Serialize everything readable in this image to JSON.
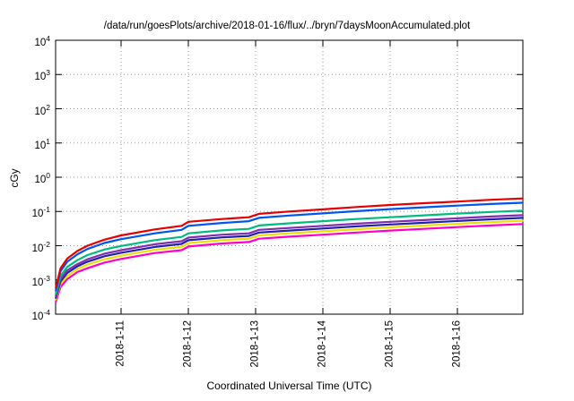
{
  "title": "/data/run/goesPlots/archive/2018-01-16/flux/../bryn/7daysMoonAccumulated.plot",
  "chart_data": {
    "type": "line",
    "title": "/data/run/goesPlots/archive/2018-01-16/flux/../bryn/7daysMoonAccumulated.plot",
    "xlabel": "Coordinated Universal Time (UTC)",
    "ylabel": "cGy",
    "y_scale": "log",
    "ylim": [
      0.0001,
      10000
    ],
    "y_tick_exponents": [
      4,
      3,
      2,
      1,
      0,
      -1,
      -2,
      -3,
      -4
    ],
    "x_tick_labels": [
      "2018-1-11",
      "2018-1-12",
      "2018-1-13",
      "2018-1-14",
      "2018-1-15",
      "2018-1-16"
    ],
    "x_tick_positions_days": [
      1,
      2,
      3,
      4,
      5,
      6
    ],
    "x_range_days": [
      0,
      6.97
    ],
    "grid": true,
    "legend": "none",
    "grid_color": "#999999",
    "series": [
      {
        "name": "accumulated-dose-red",
        "color": "#e60000",
        "points": [
          [
            0.03,
            0.0006
          ],
          [
            0.1,
            0.0022
          ],
          [
            0.2,
            0.0042
          ],
          [
            0.35,
            0.007
          ],
          [
            0.5,
            0.01
          ],
          [
            0.75,
            0.015
          ],
          [
            1.0,
            0.02
          ],
          [
            1.5,
            0.03
          ],
          [
            1.9,
            0.038
          ],
          [
            2.0,
            0.05
          ],
          [
            2.5,
            0.06
          ],
          [
            2.9,
            0.068
          ],
          [
            3.05,
            0.085
          ],
          [
            3.5,
            0.1
          ],
          [
            4.0,
            0.115
          ],
          [
            4.5,
            0.135
          ],
          [
            5.0,
            0.155
          ],
          [
            5.5,
            0.175
          ],
          [
            6.0,
            0.195
          ],
          [
            6.5,
            0.22
          ],
          [
            6.97,
            0.24
          ]
        ]
      },
      {
        "name": "accumulated-dose-blue",
        "color": "#0055ee",
        "points": [
          [
            0.03,
            0.0005
          ],
          [
            0.1,
            0.0018
          ],
          [
            0.2,
            0.0034
          ],
          [
            0.35,
            0.0056
          ],
          [
            0.5,
            0.008
          ],
          [
            0.75,
            0.012
          ],
          [
            1.0,
            0.0155
          ],
          [
            1.5,
            0.023
          ],
          [
            1.9,
            0.029
          ],
          [
            2.0,
            0.038
          ],
          [
            2.5,
            0.046
          ],
          [
            2.9,
            0.052
          ],
          [
            3.05,
            0.065
          ],
          [
            3.5,
            0.076
          ],
          [
            4.0,
            0.088
          ],
          [
            4.5,
            0.102
          ],
          [
            5.0,
            0.117
          ],
          [
            5.5,
            0.132
          ],
          [
            6.0,
            0.148
          ],
          [
            6.5,
            0.165
          ],
          [
            6.97,
            0.18
          ]
        ]
      },
      {
        "name": "accumulated-dose-green",
        "color": "#00bb7f",
        "points": [
          [
            0.03,
            0.0004
          ],
          [
            0.1,
            0.0013
          ],
          [
            0.2,
            0.0024
          ],
          [
            0.35,
            0.0038
          ],
          [
            0.5,
            0.0053
          ],
          [
            0.75,
            0.0077
          ],
          [
            1.0,
            0.0098
          ],
          [
            1.5,
            0.0145
          ],
          [
            1.9,
            0.018
          ],
          [
            2.0,
            0.023
          ],
          [
            2.5,
            0.028
          ],
          [
            2.9,
            0.031
          ],
          [
            3.05,
            0.039
          ],
          [
            3.5,
            0.045
          ],
          [
            4.0,
            0.052
          ],
          [
            4.5,
            0.06
          ],
          [
            5.0,
            0.068
          ],
          [
            5.5,
            0.077
          ],
          [
            6.0,
            0.087
          ],
          [
            6.5,
            0.097
          ],
          [
            6.97,
            0.106
          ]
        ]
      },
      {
        "name": "accumulated-dose-violet",
        "color": "#7f2faf",
        "points": [
          [
            0.03,
            0.00034
          ],
          [
            0.1,
            0.00105
          ],
          [
            0.2,
            0.0019
          ],
          [
            0.35,
            0.0029
          ],
          [
            0.5,
            0.004
          ],
          [
            0.75,
            0.0058
          ],
          [
            1.0,
            0.0074
          ],
          [
            1.5,
            0.011
          ],
          [
            1.9,
            0.0135
          ],
          [
            2.0,
            0.0172
          ],
          [
            2.5,
            0.021
          ],
          [
            2.9,
            0.023
          ],
          [
            3.05,
            0.029
          ],
          [
            3.5,
            0.033
          ],
          [
            4.0,
            0.038
          ],
          [
            4.5,
            0.044
          ],
          [
            5.0,
            0.05
          ],
          [
            5.5,
            0.056
          ],
          [
            6.0,
            0.063
          ],
          [
            6.5,
            0.071
          ],
          [
            6.97,
            0.078
          ]
        ]
      },
      {
        "name": "accumulated-dose-navy",
        "color": "#2222aa",
        "points": [
          [
            0.03,
            0.0003
          ],
          [
            0.1,
            0.0009
          ],
          [
            0.2,
            0.0016
          ],
          [
            0.35,
            0.0025
          ],
          [
            0.5,
            0.0034
          ],
          [
            0.75,
            0.0049
          ],
          [
            1.0,
            0.0062
          ],
          [
            1.5,
            0.0092
          ],
          [
            1.9,
            0.0113
          ],
          [
            2.0,
            0.0144
          ],
          [
            2.5,
            0.0175
          ],
          [
            2.9,
            0.0193
          ],
          [
            3.05,
            0.0242
          ],
          [
            3.5,
            0.0277
          ],
          [
            4.0,
            0.0318
          ],
          [
            4.5,
            0.0366
          ],
          [
            5.0,
            0.0417
          ],
          [
            5.5,
            0.0468
          ],
          [
            6.0,
            0.0527
          ],
          [
            6.5,
            0.059
          ],
          [
            6.97,
            0.065
          ]
        ]
      },
      {
        "name": "accumulated-dose-yellow",
        "color": "#eedd00",
        "points": [
          [
            0.03,
            0.00027
          ],
          [
            0.1,
            0.00077
          ],
          [
            0.2,
            0.0013
          ],
          [
            0.35,
            0.0021
          ],
          [
            0.5,
            0.0028
          ],
          [
            0.75,
            0.004
          ],
          [
            1.0,
            0.0051
          ],
          [
            1.5,
            0.0076
          ],
          [
            1.9,
            0.0093
          ],
          [
            2.0,
            0.0119
          ],
          [
            2.5,
            0.0145
          ],
          [
            2.9,
            0.016
          ],
          [
            3.05,
            0.02
          ],
          [
            3.5,
            0.023
          ],
          [
            4.0,
            0.0263
          ],
          [
            4.5,
            0.0303
          ],
          [
            5.0,
            0.0345
          ],
          [
            5.5,
            0.0387
          ],
          [
            6.0,
            0.0436
          ],
          [
            6.5,
            0.0488
          ],
          [
            6.97,
            0.0535
          ]
        ]
      },
      {
        "name": "accumulated-dose-magenta",
        "color": "#ff00cc",
        "points": [
          [
            0.03,
            0.00023
          ],
          [
            0.1,
            0.00062
          ],
          [
            0.2,
            0.00105
          ],
          [
            0.35,
            0.0017
          ],
          [
            0.5,
            0.0022
          ],
          [
            0.75,
            0.0032
          ],
          [
            1.0,
            0.0041
          ],
          [
            1.5,
            0.0061
          ],
          [
            1.9,
            0.0074
          ],
          [
            2.0,
            0.0095
          ],
          [
            2.5,
            0.0116
          ],
          [
            2.9,
            0.0128
          ],
          [
            3.05,
            0.016
          ],
          [
            3.5,
            0.0184
          ],
          [
            4.0,
            0.021
          ],
          [
            4.5,
            0.0242
          ],
          [
            5.0,
            0.0276
          ],
          [
            5.5,
            0.031
          ],
          [
            6.0,
            0.0349
          ],
          [
            6.5,
            0.039
          ],
          [
            6.97,
            0.0428
          ]
        ]
      }
    ]
  }
}
